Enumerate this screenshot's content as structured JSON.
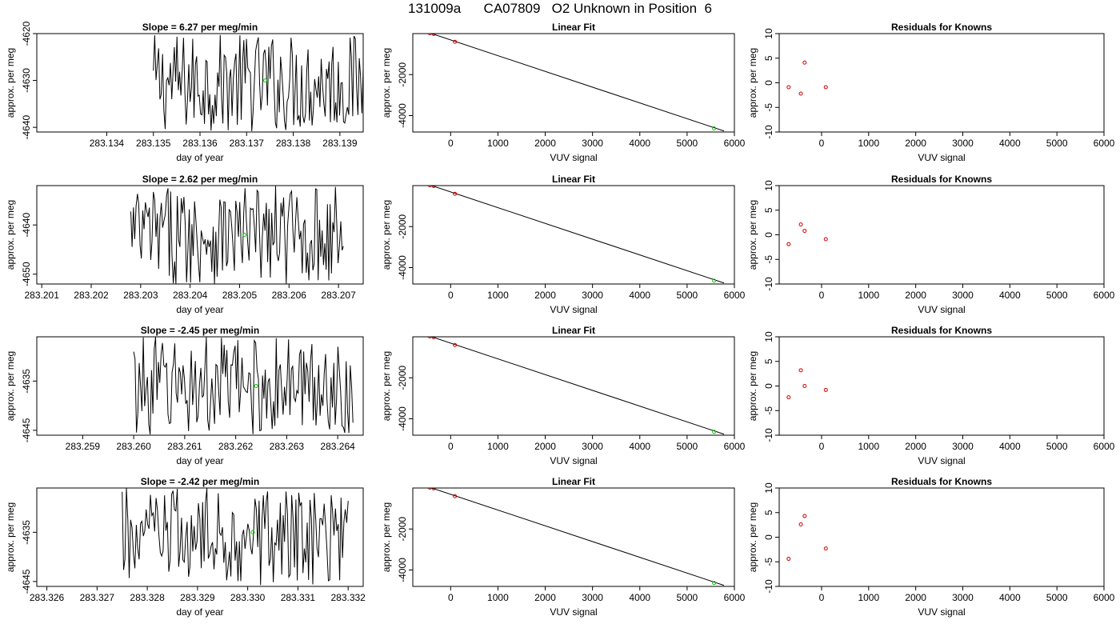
{
  "figure_title": "131009a      CA07809   O2 Unknown in Position  6",
  "colors": {
    "line": "#000000",
    "known_marker": "#cc0000",
    "unknown_marker": "#00cc00",
    "background": "#ffffff"
  },
  "chart_data": [
    {
      "type": "line",
      "row": 1,
      "title": "Slope =  6.27  per meg/min",
      "xlabel": "day of year",
      "ylabel": "approx. per meg",
      "xlim": [
        283.1325,
        283.1395
      ],
      "ylim": [
        -4641,
        -4620
      ],
      "xticks": [
        "283.134",
        "283.135",
        "283.136",
        "283.137",
        "283.138",
        "283.139"
      ],
      "yticks": [
        "-4620",
        "-4630",
        "-4640"
      ],
      "trace_range": [
        283.135,
        283.1395
      ],
      "trace_y_range": [
        -4641,
        -4620
      ],
      "mean_point": {
        "x": 283.1374,
        "y": -4630
      }
    },
    {
      "type": "scatter",
      "row": 1,
      "title": "Linear Fit",
      "xlabel": "VUV signal",
      "ylabel": "approx. per meg",
      "xlim": [
        -800,
        6000
      ],
      "ylim": [
        -4800,
        0
      ],
      "xticks": [
        "0",
        "1000",
        "2000",
        "3000",
        "4000",
        "5000",
        "6000"
      ],
      "yticks": [
        "-2000",
        "-4000"
      ],
      "knowns": [
        {
          "x": -700,
          "y": 230
        },
        {
          "x": -440,
          "y": 20
        },
        {
          "x": -360,
          "y": -20
        },
        {
          "x": 90,
          "y": -400
        }
      ],
      "unknown": {
        "x": 5570,
        "y": -4625
      },
      "fit_line": [
        {
          "x": -700,
          "y": 230
        },
        {
          "x": 5780,
          "y": -4750
        }
      ]
    },
    {
      "type": "scatter",
      "row": 1,
      "title": "Residuals for Knowns",
      "xlabel": "VUV signal",
      "ylabel": "approx. per meg",
      "xlim": [
        -900,
        6000
      ],
      "ylim": [
        -10,
        10
      ],
      "xticks": [
        "0",
        "1000",
        "2000",
        "3000",
        "4000",
        "5000",
        "6000"
      ],
      "yticks": [
        "10",
        "5",
        "0",
        "-5",
        "-10"
      ],
      "points": [
        {
          "x": -700,
          "y": -0.9
        },
        {
          "x": -440,
          "y": -2.2
        },
        {
          "x": -360,
          "y": 4.1
        },
        {
          "x": 90,
          "y": -0.9
        }
      ]
    },
    {
      "type": "line",
      "row": 2,
      "title": "Slope =  2.62  per meg/min",
      "xlabel": "day of year",
      "ylabel": "approx. per meg",
      "xlim": [
        283.2009,
        283.2075
      ],
      "ylim": [
        -4652,
        -4632
      ],
      "xticks": [
        "283.201",
        "283.202",
        "283.203",
        "283.204",
        "283.205",
        "283.206",
        "283.207"
      ],
      "yticks": [
        "-4640",
        "-4650"
      ],
      "trace_range": [
        283.2028,
        283.2071
      ],
      "trace_y_range": [
        -4652,
        -4632
      ],
      "mean_point": {
        "x": 283.2051,
        "y": -4642
      }
    },
    {
      "type": "scatter",
      "row": 2,
      "title": "Linear Fit",
      "xlabel": "VUV signal",
      "ylabel": "approx. per meg",
      "xlim": [
        -800,
        6000
      ],
      "ylim": [
        -4800,
        0
      ],
      "xticks": [
        "0",
        "1000",
        "2000",
        "3000",
        "4000",
        "5000",
        "6000"
      ],
      "yticks": [
        "-2000",
        "-4000"
      ],
      "knowns": [
        {
          "x": -700,
          "y": 230
        },
        {
          "x": -440,
          "y": 20
        },
        {
          "x": -360,
          "y": -20
        },
        {
          "x": 90,
          "y": -400
        }
      ],
      "unknown": {
        "x": 5570,
        "y": -4640
      },
      "fit_line": [
        {
          "x": -700,
          "y": 230
        },
        {
          "x": 5780,
          "y": -4750
        }
      ]
    },
    {
      "type": "scatter",
      "row": 2,
      "title": "Residuals for Knowns",
      "xlabel": "VUV signal",
      "ylabel": "approx. per meg",
      "xlim": [
        -900,
        6000
      ],
      "ylim": [
        -10,
        10
      ],
      "xticks": [
        "0",
        "1000",
        "2000",
        "3000",
        "4000",
        "5000",
        "6000"
      ],
      "yticks": [
        "10",
        "5",
        "0",
        "-5",
        "-10"
      ],
      "points": [
        {
          "x": -700,
          "y": -1.9
        },
        {
          "x": -440,
          "y": 2.1
        },
        {
          "x": -360,
          "y": 0.8
        },
        {
          "x": 90,
          "y": -0.9
        }
      ]
    },
    {
      "type": "line",
      "row": 3,
      "title": "Slope =  -2.45  per meg/min",
      "xlabel": "day of year",
      "ylabel": "approx. per meg",
      "xlim": [
        283.2581,
        283.2645
      ],
      "ylim": [
        -4646,
        -4626
      ],
      "xticks": [
        "283.259",
        "283.260",
        "283.261",
        "283.262",
        "283.263",
        "283.264"
      ],
      "yticks": [
        "-4635",
        "-4645"
      ],
      "trace_range": [
        283.26,
        283.2643
      ],
      "trace_y_range": [
        -4646,
        -4626
      ],
      "mean_point": {
        "x": 283.2624,
        "y": -4636
      }
    },
    {
      "type": "scatter",
      "row": 3,
      "title": "Linear Fit",
      "xlabel": "VUV signal",
      "ylabel": "approx. per meg",
      "xlim": [
        -800,
        6000
      ],
      "ylim": [
        -4800,
        0
      ],
      "xticks": [
        "0",
        "1000",
        "2000",
        "3000",
        "4000",
        "5000",
        "6000"
      ],
      "yticks": [
        "-2000",
        "-4000"
      ],
      "knowns": [
        {
          "x": -700,
          "y": 230
        },
        {
          "x": -440,
          "y": 20
        },
        {
          "x": -360,
          "y": -20
        },
        {
          "x": 90,
          "y": -400
        }
      ],
      "unknown": {
        "x": 5570,
        "y": -4636
      },
      "fit_line": [
        {
          "x": -700,
          "y": 230
        },
        {
          "x": 5780,
          "y": -4750
        }
      ]
    },
    {
      "type": "scatter",
      "row": 3,
      "title": "Residuals for Knowns",
      "xlabel": "VUV signal",
      "ylabel": "approx. per meg",
      "xlim": [
        -900,
        6000
      ],
      "ylim": [
        -10,
        10
      ],
      "xticks": [
        "0",
        "1000",
        "2000",
        "3000",
        "4000",
        "5000",
        "6000"
      ],
      "yticks": [
        "10",
        "5",
        "0",
        "-5",
        "-10"
      ],
      "points": [
        {
          "x": -700,
          "y": -2.3
        },
        {
          "x": -440,
          "y": 3.2
        },
        {
          "x": -360,
          "y": 0.0
        },
        {
          "x": 90,
          "y": -0.8
        }
      ]
    },
    {
      "type": "line",
      "row": 4,
      "title": "Slope =  -2.42  per meg/min",
      "xlabel": "day of year",
      "ylabel": "approx. per meg",
      "xlim": [
        283.3258,
        283.3323
      ],
      "ylim": [
        -4646,
        -4626
      ],
      "xticks": [
        "283.326",
        "283.327",
        "283.328",
        "283.329",
        "283.330",
        "283.331",
        "283.332"
      ],
      "yticks": [
        "-4635",
        "-4645"
      ],
      "trace_range": [
        283.3275,
        283.332
      ],
      "trace_y_range": [
        -4646,
        -4626
      ],
      "mean_point": {
        "x": 283.3301,
        "y": -4635
      }
    },
    {
      "type": "scatter",
      "row": 4,
      "title": "Linear Fit",
      "xlabel": "VUV signal",
      "ylabel": "approx. per meg",
      "xlim": [
        -800,
        6000
      ],
      "ylim": [
        -4800,
        0
      ],
      "xticks": [
        "0",
        "1000",
        "2000",
        "3000",
        "4000",
        "5000",
        "6000"
      ],
      "yticks": [
        "-2000",
        "-4000"
      ],
      "knowns": [
        {
          "x": -700,
          "y": 230
        },
        {
          "x": -440,
          "y": 20
        },
        {
          "x": -360,
          "y": -20
        },
        {
          "x": 90,
          "y": -400
        }
      ],
      "unknown": {
        "x": 5570,
        "y": -4635
      },
      "fit_line": [
        {
          "x": -700,
          "y": 230
        },
        {
          "x": 5780,
          "y": -4750
        }
      ]
    },
    {
      "type": "scatter",
      "row": 4,
      "title": "Residuals for Knowns",
      "xlabel": "VUV signal",
      "ylabel": "approx. per meg",
      "xlim": [
        -900,
        6000
      ],
      "ylim": [
        -10,
        10
      ],
      "xticks": [
        "0",
        "1000",
        "2000",
        "3000",
        "4000",
        "5000",
        "6000"
      ],
      "yticks": [
        "10",
        "5",
        "0",
        "-5",
        "-10"
      ],
      "points": [
        {
          "x": -700,
          "y": -4.4
        },
        {
          "x": -440,
          "y": 2.6
        },
        {
          "x": -360,
          "y": 4.3
        },
        {
          "x": 90,
          "y": -2.3
        }
      ]
    }
  ]
}
